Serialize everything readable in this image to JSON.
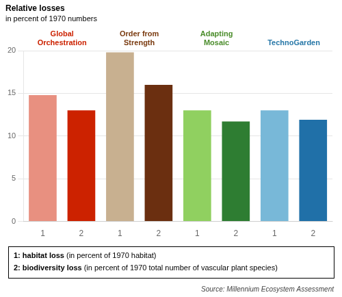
{
  "chart_data": {
    "type": "bar",
    "ylabel": "Relative losses",
    "ylabel_detail": "in percent of 1970 numbers",
    "categories": [
      "1",
      "2",
      "1",
      "2",
      "1",
      "2",
      "1",
      "2"
    ],
    "values": [
      14.8,
      13.0,
      19.8,
      16.0,
      13.0,
      11.7,
      13.0,
      11.9
    ],
    "colors": [
      "#e89080",
      "#cc2200",
      "#c8b090",
      "#6b2f10",
      "#90d060",
      "#2e7d32",
      "#78b8d8",
      "#2070a8"
    ],
    "groups": [
      {
        "name": "Global\nOrchestration",
        "color": "#cc2200"
      },
      {
        "name": "Order from\nStrength",
        "color": "#7a3b10"
      },
      {
        "name": "Adapting\nMosaic",
        "color": "#4a8c2a"
      },
      {
        "name": "TechnoGarden",
        "color": "#2878a8"
      }
    ],
    "key_lines": [
      {
        "term": "1: habitat loss",
        "text": "(in percent of 1970 habitat)"
      },
      {
        "term": "2: biodiversity loss",
        "text": "(in percent of 1970 total number of vascular plant species)"
      }
    ],
    "source": "Source: Millennium Ecosystem Assessment",
    "ylim": [
      0,
      20
    ],
    "yticks": [
      0,
      5,
      10,
      15,
      20
    ],
    "grid": true
  }
}
